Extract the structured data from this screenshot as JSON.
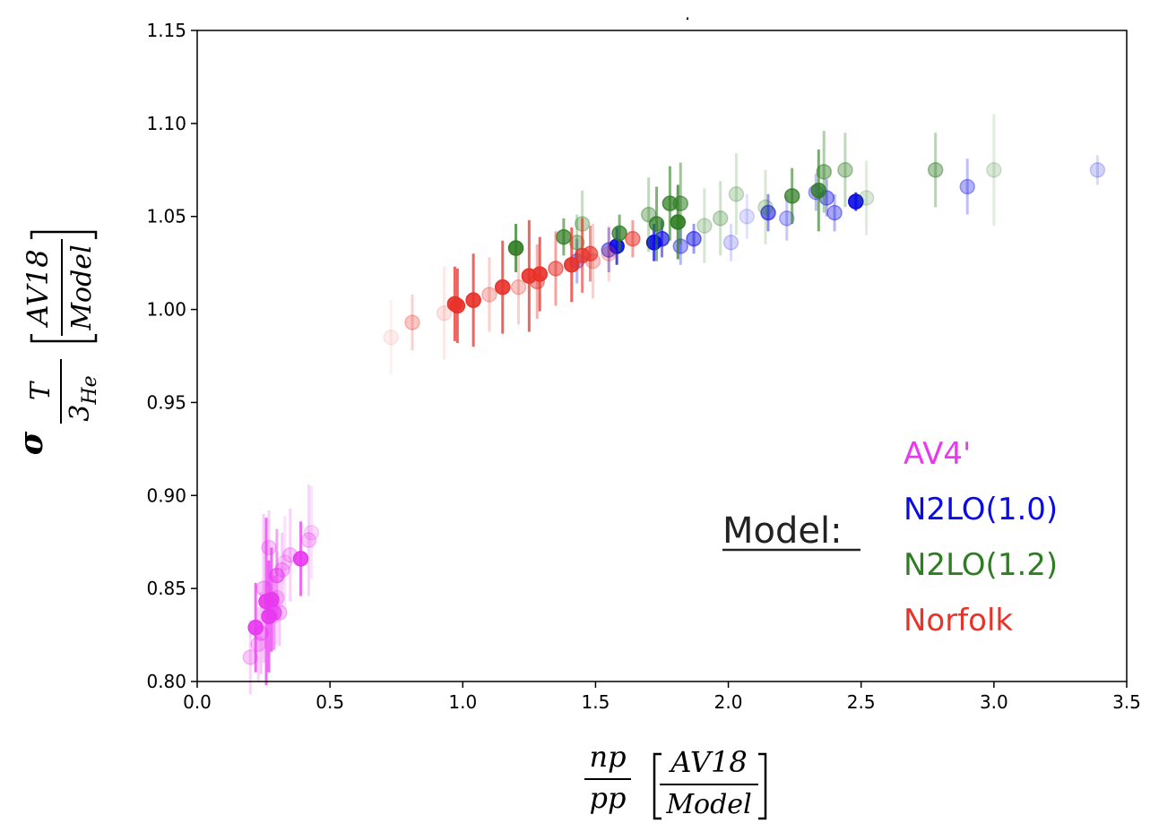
{
  "chart_data": {
    "type": "scatter",
    "title": ".",
    "xlabel": {
      "frac_num": "np",
      "frac_den": "pp",
      "bracket_num": "AV18",
      "bracket_den": "Model"
    },
    "ylabel": {
      "sigma": "σ",
      "frac_num": "T",
      "frac_den_base": "3",
      "frac_den_sub": "He",
      "bracket_num": "AV18",
      "bracket_den": "Model"
    },
    "xlim": [
      0.0,
      3.5
    ],
    "ylim": [
      0.8,
      1.15
    ],
    "xticks": [
      "0.0",
      "0.5",
      "1.0",
      "1.5",
      "2.0",
      "2.5",
      "3.0",
      "3.5"
    ],
    "yticks": [
      "0.80",
      "0.85",
      "0.90",
      "0.95",
      "1.00",
      "1.05",
      "1.10",
      "1.15"
    ],
    "legend": {
      "title": "Model:",
      "entries": [
        {
          "label": "AV4'",
          "color": "#e838f0"
        },
        {
          "label": "N2LO(1.0)",
          "color": "#0a0ae6"
        },
        {
          "label": "N2LO(1.2)",
          "color": "#2e7d22"
        },
        {
          "label": "Norfolk",
          "color": "#e8322a"
        }
      ]
    },
    "series": [
      {
        "name": "AV4'",
        "color": "#e838f0",
        "points": [
          [
            0.22,
            0.829,
            0.024,
            1
          ],
          [
            0.26,
            0.843,
            0.045,
            1
          ],
          [
            0.27,
            0.835,
            0.03,
            1
          ],
          [
            0.28,
            0.844,
            0.028,
            1
          ],
          [
            0.39,
            0.866,
            0.02,
            1
          ],
          [
            0.3,
            0.857,
            0.025,
            0.6
          ],
          [
            0.32,
            0.86,
            0.02,
            0.35
          ],
          [
            0.35,
            0.868,
            0.025,
            0.3
          ],
          [
            0.29,
            0.837,
            0.02,
            0.7
          ],
          [
            0.31,
            0.837,
            0.018,
            0.35
          ],
          [
            0.24,
            0.826,
            0.022,
            0.4
          ],
          [
            0.2,
            0.813,
            0.02,
            0.3
          ],
          [
            0.42,
            0.876,
            0.03,
            0.3
          ],
          [
            0.43,
            0.88,
            0.025,
            0.2
          ],
          [
            0.25,
            0.85,
            0.04,
            0.35
          ],
          [
            0.27,
            0.872,
            0.02,
            0.3
          ],
          [
            0.3,
            0.845,
            0.025,
            0.25
          ],
          [
            0.23,
            0.82,
            0.02,
            0.3
          ],
          [
            0.33,
            0.864,
            0.025,
            0.2
          ]
        ]
      },
      {
        "name": "N2LO(1.0)",
        "color": "#0a0ae6",
        "points": [
          [
            1.58,
            1.034,
            0.01,
            1
          ],
          [
            1.72,
            1.036,
            0.01,
            1
          ],
          [
            1.75,
            1.038,
            0.01,
            0.7
          ],
          [
            2.48,
            1.058,
            0.005,
            1
          ],
          [
            2.15,
            1.052,
            0.01,
            0.6
          ],
          [
            1.87,
            1.038,
            0.008,
            0.55
          ],
          [
            2.37,
            1.06,
            0.01,
            0.45
          ],
          [
            2.4,
            1.052,
            0.01,
            0.4
          ],
          [
            2.33,
            1.063,
            0.01,
            0.35
          ],
          [
            2.9,
            1.066,
            0.015,
            0.35
          ],
          [
            3.39,
            1.075,
            0.008,
            0.2
          ],
          [
            2.22,
            1.049,
            0.012,
            0.3
          ],
          [
            2.01,
            1.036,
            0.01,
            0.2
          ],
          [
            1.55,
            1.032,
            0.012,
            0.5
          ],
          [
            1.82,
            1.034,
            0.01,
            0.4
          ],
          [
            1.43,
            1.026,
            0.012,
            0.4
          ],
          [
            2.07,
            1.05,
            0.012,
            0.15
          ]
        ]
      },
      {
        "name": "N2LO(1.2)",
        "color": "#2e7d22",
        "points": [
          [
            1.2,
            1.033,
            0.013,
            1
          ],
          [
            1.38,
            1.039,
            0.01,
            0.8
          ],
          [
            1.59,
            1.041,
            0.01,
            0.8
          ],
          [
            1.73,
            1.046,
            0.02,
            0.8
          ],
          [
            1.78,
            1.057,
            0.02,
            0.8
          ],
          [
            1.81,
            1.047,
            0.02,
            1
          ],
          [
            1.82,
            1.057,
            0.022,
            0.6
          ],
          [
            2.24,
            1.061,
            0.015,
            0.8
          ],
          [
            2.34,
            1.064,
            0.022,
            0.85
          ],
          [
            2.36,
            1.074,
            0.022,
            0.5
          ],
          [
            2.44,
            1.075,
            0.02,
            0.4
          ],
          [
            2.78,
            1.075,
            0.02,
            0.45
          ],
          [
            1.45,
            1.046,
            0.018,
            0.35
          ],
          [
            1.43,
            1.036,
            0.015,
            0.4
          ],
          [
            1.7,
            1.051,
            0.02,
            0.4
          ],
          [
            1.97,
            1.049,
            0.02,
            0.3
          ],
          [
            2.03,
            1.062,
            0.022,
            0.25
          ],
          [
            3.0,
            1.075,
            0.03,
            0.2
          ],
          [
            2.14,
            1.055,
            0.02,
            0.25
          ],
          [
            2.52,
            1.06,
            0.02,
            0.2
          ],
          [
            1.91,
            1.045,
            0.02,
            0.25
          ]
        ]
      },
      {
        "name": "Norfolk",
        "color": "#e8322a",
        "points": [
          [
            0.97,
            1.003,
            0.02,
            1
          ],
          [
            0.98,
            1.002,
            0.02,
            1
          ],
          [
            1.04,
            1.005,
            0.025,
            1
          ],
          [
            1.15,
            1.012,
            0.025,
            1
          ],
          [
            1.25,
            1.018,
            0.03,
            1
          ],
          [
            1.29,
            1.019,
            0.02,
            1
          ],
          [
            1.41,
            1.024,
            0.02,
            1
          ],
          [
            1.45,
            1.029,
            0.02,
            0.8
          ],
          [
            1.48,
            1.03,
            0.015,
            0.7
          ],
          [
            1.35,
            1.022,
            0.02,
            0.6
          ],
          [
            1.64,
            1.038,
            0.01,
            0.6
          ],
          [
            1.28,
            1.015,
            0.02,
            0.5
          ],
          [
            0.81,
            0.993,
            0.015,
            0.3
          ],
          [
            1.1,
            1.008,
            0.02,
            0.3
          ],
          [
            1.21,
            1.012,
            0.02,
            0.3
          ],
          [
            1.49,
            1.026,
            0.02,
            0.3
          ],
          [
            0.73,
            0.985,
            0.02,
            0.1
          ],
          [
            0.93,
            0.998,
            0.025,
            0.15
          ],
          [
            1.55,
            1.03,
            0.015,
            0.25
          ]
        ]
      }
    ]
  }
}
